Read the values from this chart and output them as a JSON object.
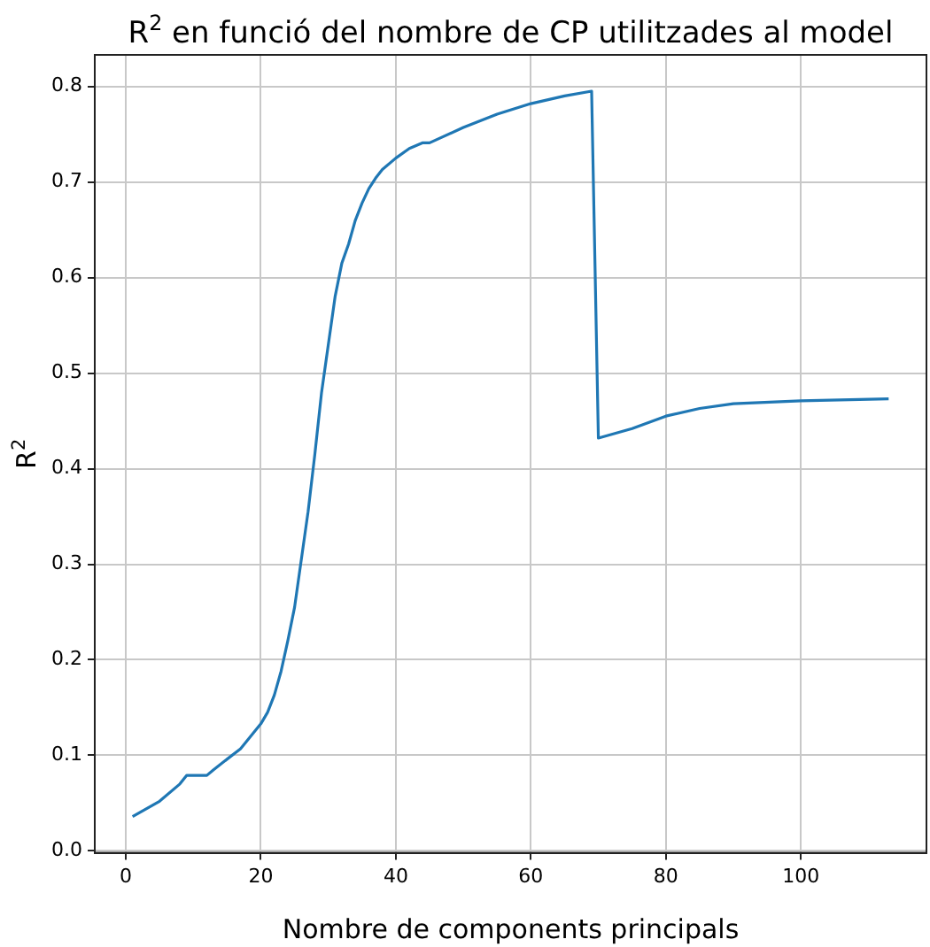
{
  "chart_data": {
    "type": "line",
    "title": "R$^{2}$ en funció del nombre de CP utilitzades al model",
    "xlabel": "Nombre de components principals",
    "ylabel": "R$^{2}$",
    "x": [
      1,
      5,
      8,
      9,
      12,
      13,
      17,
      20,
      21,
      22,
      23,
      24,
      25,
      26,
      27,
      28,
      29,
      30,
      31,
      32,
      33,
      34,
      35,
      36,
      37,
      38,
      40,
      42,
      44,
      45,
      50,
      55,
      60,
      65,
      69,
      70,
      75,
      80,
      85,
      90,
      100,
      113
    ],
    "series": [
      {
        "color": "#1f77b4",
        "values": [
          0.036,
          0.052,
          0.07,
          0.079,
          0.079,
          0.085,
          0.107,
          0.133,
          0.145,
          0.163,
          0.188,
          0.22,
          0.255,
          0.305,
          0.355,
          0.415,
          0.48,
          0.53,
          0.58,
          0.615,
          0.635,
          0.66,
          0.678,
          0.693,
          0.704,
          0.713,
          0.725,
          0.735,
          0.741,
          0.741,
          0.757,
          0.771,
          0.782,
          0.79,
          0.795,
          0.432,
          0.442,
          0.455,
          0.463,
          0.468,
          0.471,
          0.473
        ]
      }
    ],
    "xlim": [
      -4.6,
      118.6
    ],
    "xticks": [
      0,
      20,
      40,
      60,
      80,
      100
    ],
    "ylim": [
      -0.002,
      0.833
    ],
    "yticks": [
      {
        "value": 0,
        "label": "0.0"
      },
      {
        "value": 0.1,
        "label": "0.1"
      },
      {
        "value": 0.2,
        "label": "0.2"
      },
      {
        "value": 0.3,
        "label": "0.3"
      },
      {
        "value": 0.4,
        "label": "0.4"
      },
      {
        "value": 0.5,
        "label": "0.5"
      },
      {
        "value": 0.6,
        "label": "0.6"
      },
      {
        "value": 0.7,
        "label": "0.7"
      },
      {
        "value": 0.8,
        "label": "0.8"
      }
    ],
    "grid": true,
    "marker": "none",
    "line_style": "solid",
    "legend": false
  }
}
